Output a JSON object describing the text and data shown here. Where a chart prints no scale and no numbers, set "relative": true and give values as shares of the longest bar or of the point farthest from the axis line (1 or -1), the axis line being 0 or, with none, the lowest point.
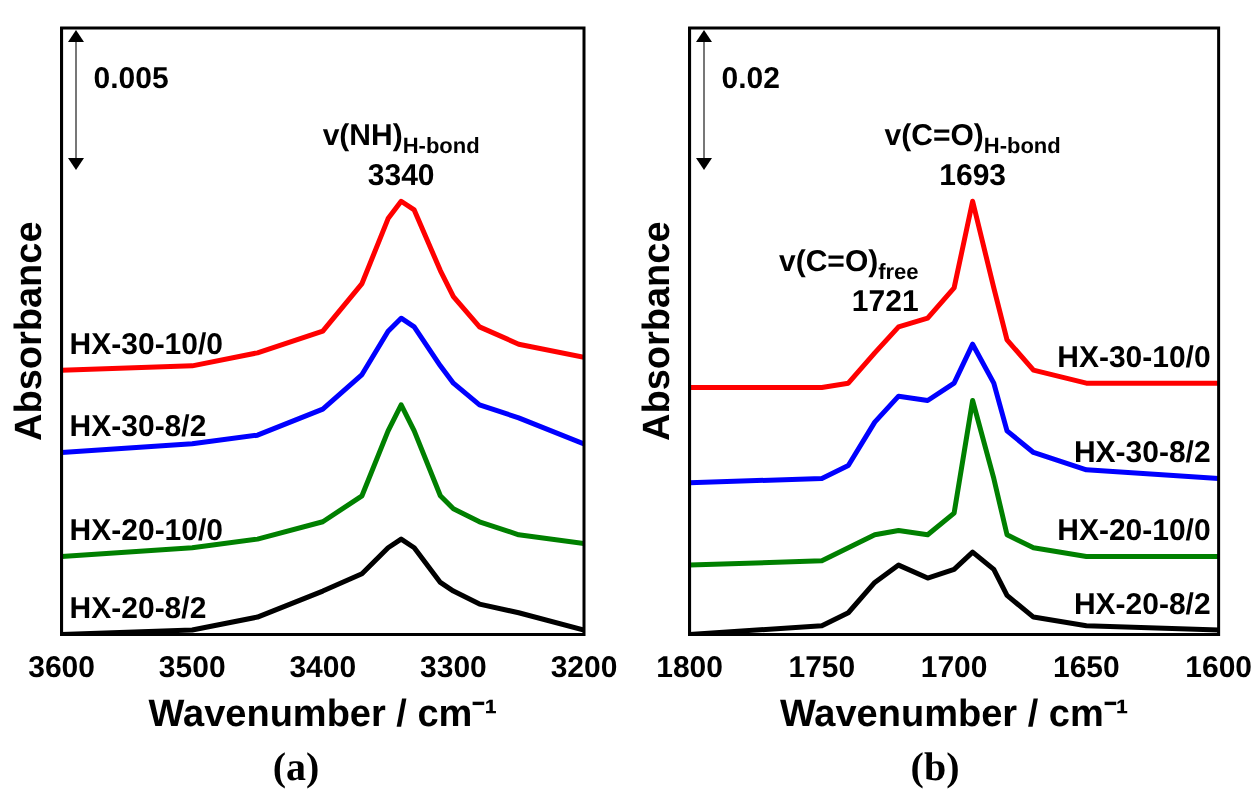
{
  "chart_data": [
    {
      "type": "line",
      "relative": true,
      "title": "(a)",
      "xlabel": "Wavenumber / cm⁻¹",
      "ylabel": "Absorbance",
      "x": [
        3600,
        3500,
        3450,
        3400,
        3370,
        3350,
        3340,
        3330,
        3310,
        3300,
        3280,
        3250,
        3200
      ],
      "xlim": [
        3600,
        3200
      ],
      "xticks": [
        3600,
        3500,
        3400,
        3300,
        3200
      ],
      "marker": "none",
      "line_style": "solid",
      "series": [
        {
          "name": "HX-30-10/0",
          "color": "#ff0000",
          "values": [
            0.61,
            0.62,
            0.65,
            0.7,
            0.81,
            0.96,
            1,
            0.98,
            0.84,
            0.78,
            0.71,
            0.67,
            0.64
          ]
        },
        {
          "name": "HX-30-8/2",
          "color": "#0000ff",
          "values": [
            0.42,
            0.44,
            0.46,
            0.52,
            0.6,
            0.7,
            0.73,
            0.71,
            0.62,
            0.58,
            0.53,
            0.5,
            0.44
          ]
        },
        {
          "name": "HX-20-10/0",
          "color": "#008000",
          "values": [
            0.18,
            0.2,
            0.22,
            0.26,
            0.32,
            0.47,
            0.53,
            0.47,
            0.32,
            0.29,
            0.26,
            0.23,
            0.21
          ]
        },
        {
          "name": "HX-20-8/2",
          "color": "#000000",
          "values": [
            0,
            0.01,
            0.04,
            0.1,
            0.14,
            0.2,
            0.22,
            0.2,
            0.12,
            0.1,
            0.07,
            0.05,
            0.01
          ]
        }
      ],
      "annotations": [
        "0.005",
        {
          "text": "v(NH)$_{H-bond}$",
          "x": 3340,
          "y": 1
        },
        {
          "text": "3340",
          "x": 3340,
          "y": 1
        }
      ]
    },
    {
      "type": "line",
      "relative": true,
      "title": "(b)",
      "xlabel": "Wavenumber / cm⁻¹",
      "ylabel": "Absorbance",
      "x": [
        1800,
        1750,
        1740,
        1730,
        1721,
        1710,
        1700,
        1693,
        1685,
        1680,
        1670,
        1650,
        1600
      ],
      "xlim": [
        1800,
        1600
      ],
      "xticks": [
        1800,
        1750,
        1700,
        1650,
        1600
      ],
      "marker": "none",
      "line_style": "solid",
      "series": [
        {
          "name": "HX-30-10/0",
          "color": "#ff0000",
          "values": [
            0.57,
            0.57,
            0.58,
            0.65,
            0.71,
            0.73,
            0.8,
            1,
            0.8,
            0.68,
            0.61,
            0.58,
            0.58
          ]
        },
        {
          "name": "HX-30-8/2",
          "color": "#0000ff",
          "values": [
            0.35,
            0.36,
            0.39,
            0.49,
            0.55,
            0.54,
            0.58,
            0.67,
            0.58,
            0.47,
            0.42,
            0.38,
            0.36
          ]
        },
        {
          "name": "HX-20-10/0",
          "color": "#008000",
          "values": [
            0.16,
            0.17,
            0.2,
            0.23,
            0.24,
            0.23,
            0.28,
            0.54,
            0.36,
            0.23,
            0.2,
            0.18,
            0.18
          ]
        },
        {
          "name": "HX-20-8/2",
          "color": "#000000",
          "values": [
            0,
            0.02,
            0.05,
            0.12,
            0.16,
            0.13,
            0.15,
            0.19,
            0.15,
            0.09,
            0.04,
            0.02,
            0.01
          ]
        }
      ],
      "annotations": [
        "0.02",
        {
          "text": "v(C=O)$_{free}$",
          "x": 1721,
          "y": 0.71
        },
        {
          "text": "1721",
          "x": 1721,
          "y": 0.71
        },
        {
          "text": "v(C=O)$_{H-bond}$",
          "x": 1693,
          "y": 1
        },
        {
          "text": "1693",
          "x": 1693,
          "y": 1
        }
      ]
    }
  ]
}
